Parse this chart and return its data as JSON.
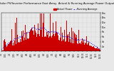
{
  "title": "Solar PV/Inverter Performance East Array  Actual & Running Average Power Output",
  "title_fontsize": 2.8,
  "bg_color": "#e8e8e8",
  "plot_bg": "#e8e8e8",
  "grid_color": "#aaaaaa",
  "bar_color": "#cc0000",
  "avg_color": "#0000dd",
  "ylim": [
    0,
    1600
  ],
  "yticks": [
    200,
    400,
    600,
    800,
    1000,
    1200,
    1400,
    1600
  ],
  "ytick_labels": [
    "2w",
    "4w",
    "6w",
    "8w",
    "10w",
    "12w",
    "14w",
    "16w"
  ],
  "xtick_fontsize": 2.0,
  "ytick_fontsize": 2.0,
  "legend_fontsize": 2.4,
  "n_points": 365,
  "legend_labels": [
    "Actual Power",
    "Running Average"
  ]
}
